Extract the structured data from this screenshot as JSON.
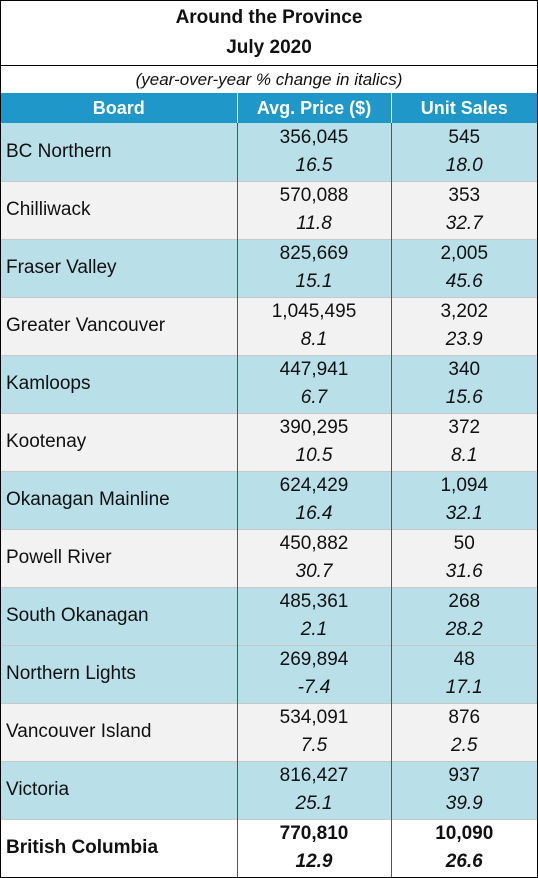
{
  "title": "Around the Province",
  "subtitle": "July 2020",
  "note": "(year-over-year % change in italics)",
  "headers": {
    "board": "Board",
    "price": "Avg. Price ($)",
    "sales": "Unit Sales"
  },
  "rows": [
    {
      "board": "BC Northern",
      "price": "356,045",
      "price_change": "16.5",
      "sales": "545",
      "sales_change": "18.0"
    },
    {
      "board": "Chilliwack",
      "price": "570,088",
      "price_change": "11.8",
      "sales": "353",
      "sales_change": "32.7"
    },
    {
      "board": "Fraser Valley",
      "price": "825,669",
      "price_change": "15.1",
      "sales": "2,005",
      "sales_change": "45.6"
    },
    {
      "board": "Greater Vancouver",
      "price": "1,045,495",
      "price_change": "8.1",
      "sales": "3,202",
      "sales_change": "23.9"
    },
    {
      "board": "Kamloops",
      "price": "447,941",
      "price_change": "6.7",
      "sales": "340",
      "sales_change": "15.6"
    },
    {
      "board": "Kootenay",
      "price": "390,295",
      "price_change": "10.5",
      "sales": "372",
      "sales_change": "8.1"
    },
    {
      "board": "Okanagan Mainline",
      "price": "624,429",
      "price_change": "16.4",
      "sales": "1,094",
      "sales_change": "32.1"
    },
    {
      "board": "Powell River",
      "price": "450,882",
      "price_change": "30.7",
      "sales": "50",
      "sales_change": "31.6"
    },
    {
      "board": "South Okanagan",
      "price": "485,361",
      "price_change": "2.1",
      "sales": "268",
      "sales_change": "28.2"
    },
    {
      "board": "Northern Lights",
      "price": "269,894",
      "price_change": "-7.4",
      "sales": "48",
      "sales_change": "17.1"
    },
    {
      "board": "Vancouver Island",
      "price": "534,091",
      "price_change": "7.5",
      "sales": "876",
      "sales_change": "2.5"
    },
    {
      "board": "Victoria",
      "price": "816,427",
      "price_change": "25.1",
      "sales": "937",
      "sales_change": "39.9"
    }
  ],
  "total": {
    "board": "British Columbia",
    "price": "770,810",
    "price_change": "12.9",
    "sales": "10,090",
    "sales_change": "26.6"
  },
  "colors": {
    "header_bg": "#1F97C9",
    "row_blue": "#B9DFE8",
    "row_gray": "#F2F2F2"
  }
}
